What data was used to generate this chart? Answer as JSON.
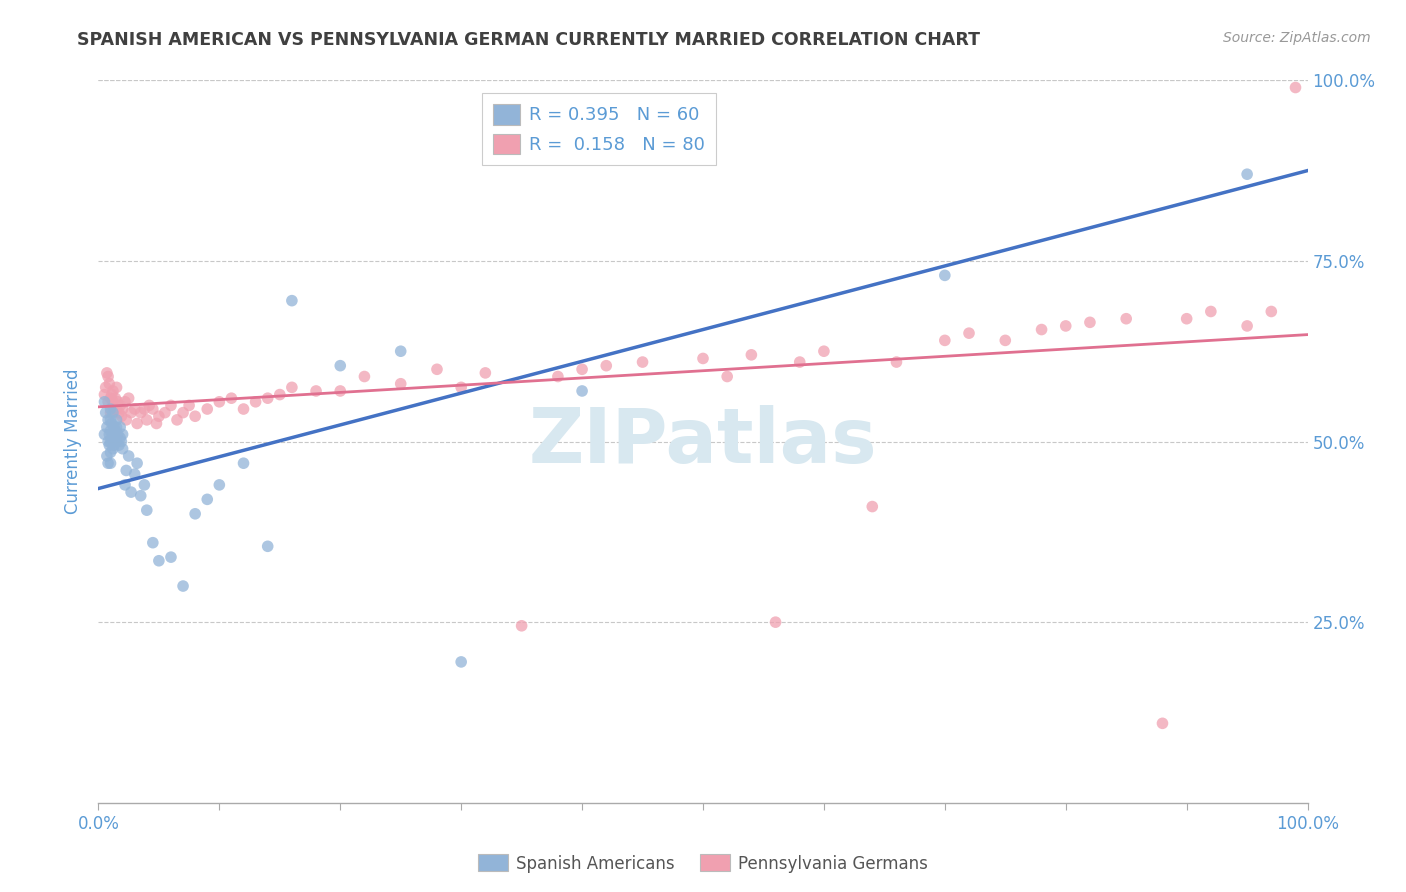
{
  "title": "SPANISH AMERICAN VS PENNSYLVANIA GERMAN CURRENTLY MARRIED CORRELATION CHART",
  "source": "Source: ZipAtlas.com",
  "ylabel": "Currently Married",
  "xlim": [
    0,
    1
  ],
  "ylim": [
    0,
    1
  ],
  "ytick_positions": [
    0.25,
    0.5,
    0.75,
    1.0
  ],
  "ytick_labels_right": [
    "25.0%",
    "50.0%",
    "75.0%",
    "100.0%"
  ],
  "legend_labels": [
    "Spanish Americans",
    "Pennsylvania Germans"
  ],
  "r_blue": 0.395,
  "n_blue": 60,
  "r_pink": 0.158,
  "n_pink": 80,
  "blue_color": "#92b4d8",
  "pink_color": "#f0a0b0",
  "blue_line_color": "#4472c4",
  "pink_line_color": "#e07090",
  "watermark_text": "ZIPatlas",
  "background_color": "#ffffff",
  "grid_color": "#c8c8c8",
  "title_color": "#404040",
  "axis_label_color": "#5b9bd5",
  "blue_scatter_x": [
    0.005,
    0.005,
    0.006,
    0.007,
    0.007,
    0.008,
    0.008,
    0.008,
    0.009,
    0.009,
    0.01,
    0.01,
    0.01,
    0.01,
    0.01,
    0.01,
    0.011,
    0.011,
    0.012,
    0.012,
    0.012,
    0.013,
    0.013,
    0.014,
    0.014,
    0.015,
    0.015,
    0.015,
    0.016,
    0.017,
    0.018,
    0.018,
    0.019,
    0.02,
    0.02,
    0.022,
    0.023,
    0.025,
    0.027,
    0.03,
    0.032,
    0.035,
    0.038,
    0.04,
    0.045,
    0.05,
    0.06,
    0.07,
    0.08,
    0.09,
    0.1,
    0.12,
    0.14,
    0.16,
    0.2,
    0.25,
    0.3,
    0.4,
    0.7,
    0.95
  ],
  "blue_scatter_y": [
    0.555,
    0.51,
    0.54,
    0.48,
    0.52,
    0.5,
    0.53,
    0.47,
    0.51,
    0.495,
    0.545,
    0.53,
    0.515,
    0.5,
    0.485,
    0.47,
    0.525,
    0.505,
    0.54,
    0.51,
    0.49,
    0.52,
    0.495,
    0.515,
    0.505,
    0.53,
    0.52,
    0.5,
    0.51,
    0.495,
    0.505,
    0.52,
    0.5,
    0.49,
    0.51,
    0.44,
    0.46,
    0.48,
    0.43,
    0.455,
    0.47,
    0.425,
    0.44,
    0.405,
    0.36,
    0.335,
    0.34,
    0.3,
    0.4,
    0.42,
    0.44,
    0.47,
    0.355,
    0.695,
    0.605,
    0.625,
    0.195,
    0.57,
    0.73,
    0.87
  ],
  "pink_scatter_x": [
    0.005,
    0.006,
    0.007,
    0.008,
    0.008,
    0.009,
    0.01,
    0.01,
    0.011,
    0.012,
    0.012,
    0.013,
    0.014,
    0.015,
    0.015,
    0.016,
    0.017,
    0.018,
    0.019,
    0.02,
    0.022,
    0.023,
    0.025,
    0.027,
    0.03,
    0.032,
    0.035,
    0.038,
    0.04,
    0.042,
    0.045,
    0.048,
    0.05,
    0.055,
    0.06,
    0.065,
    0.07,
    0.075,
    0.08,
    0.09,
    0.1,
    0.11,
    0.12,
    0.13,
    0.14,
    0.15,
    0.16,
    0.18,
    0.2,
    0.22,
    0.25,
    0.28,
    0.3,
    0.32,
    0.35,
    0.38,
    0.4,
    0.42,
    0.45,
    0.5,
    0.52,
    0.54,
    0.56,
    0.58,
    0.6,
    0.64,
    0.66,
    0.7,
    0.72,
    0.75,
    0.78,
    0.8,
    0.82,
    0.85,
    0.88,
    0.9,
    0.92,
    0.95,
    0.97,
    0.99
  ],
  "pink_scatter_y": [
    0.565,
    0.575,
    0.595,
    0.555,
    0.59,
    0.58,
    0.56,
    0.54,
    0.565,
    0.555,
    0.57,
    0.545,
    0.56,
    0.575,
    0.545,
    0.555,
    0.54,
    0.55,
    0.535,
    0.545,
    0.555,
    0.53,
    0.56,
    0.54,
    0.545,
    0.525,
    0.54,
    0.545,
    0.53,
    0.55,
    0.545,
    0.525,
    0.535,
    0.54,
    0.55,
    0.53,
    0.54,
    0.55,
    0.535,
    0.545,
    0.555,
    0.56,
    0.545,
    0.555,
    0.56,
    0.565,
    0.575,
    0.57,
    0.57,
    0.59,
    0.58,
    0.6,
    0.575,
    0.595,
    0.245,
    0.59,
    0.6,
    0.605,
    0.61,
    0.615,
    0.59,
    0.62,
    0.25,
    0.61,
    0.625,
    0.41,
    0.61,
    0.64,
    0.65,
    0.64,
    0.655,
    0.66,
    0.665,
    0.67,
    0.11,
    0.67,
    0.68,
    0.66,
    0.68,
    0.99
  ]
}
